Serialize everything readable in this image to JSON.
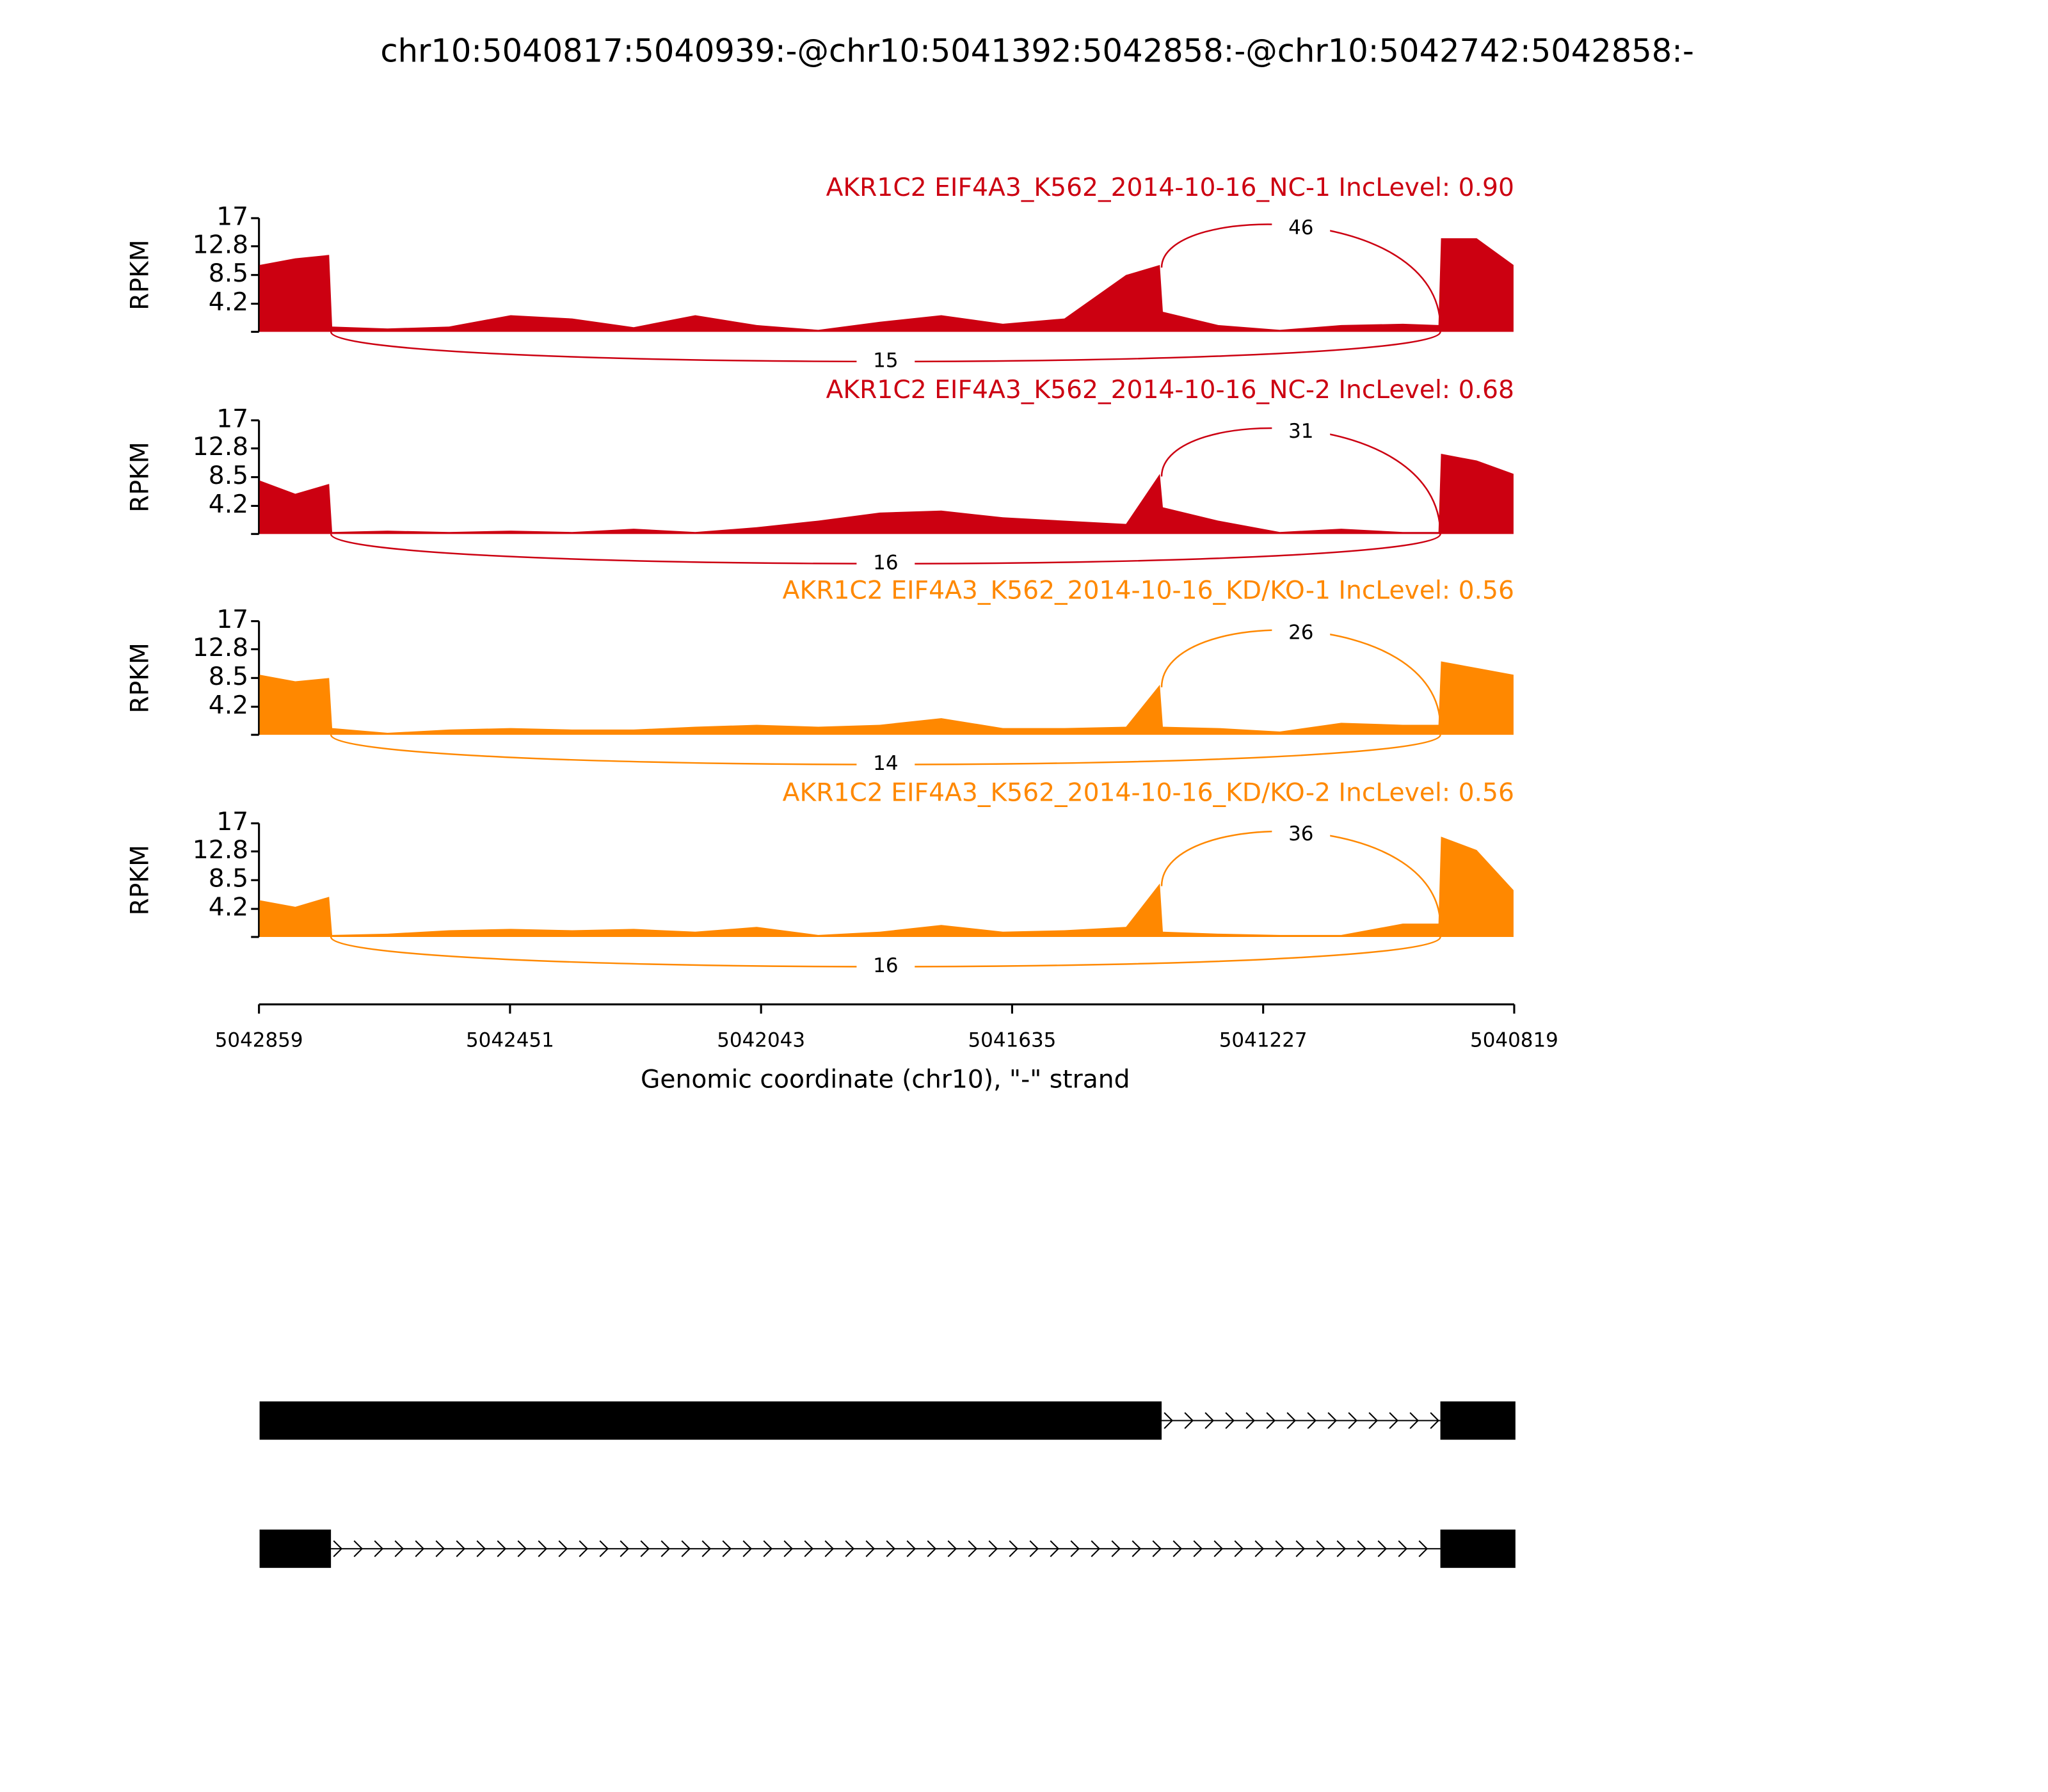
{
  "chart_data": {
    "type": "sashimi",
    "title": "chr10:5040817:5040939:-@chr10:5041392:5042858:-@chr10:5042742:5042858:-",
    "x_label": "Genomic coordinate (chr10), \"-\" strand",
    "xlim": [
      5042859,
      5040819
    ],
    "xticks": [
      5042859,
      5042451,
      5042043,
      5041635,
      5041227,
      5040819
    ],
    "x": [
      5042858,
      5042800,
      5042745,
      5042740,
      5042650,
      5042550,
      5042450,
      5042350,
      5042250,
      5042150,
      5042050,
      5041950,
      5041850,
      5041750,
      5041650,
      5041550,
      5041450,
      5041395,
      5041390,
      5041300,
      5041200,
      5041100,
      5041000,
      5040942,
      5040938,
      5040880,
      5040820
    ],
    "tracks": [
      {
        "name": "AKR1C2 EIF4A3_K562_2014-10-16_NC-1 IncLevel: 0.90",
        "color": "#cc0011",
        "y_label": "RPKM",
        "ylim": [
          0,
          17
        ],
        "yticks": [
          4.2,
          8.5,
          12.8,
          17
        ],
        "values": [
          10,
          11,
          11.5,
          0.8,
          0.5,
          0.8,
          2.5,
          2.0,
          0.7,
          2.5,
          1.0,
          0.3,
          1.5,
          2.5,
          1.2,
          2.0,
          8.5,
          10,
          3,
          1.0,
          0.3,
          1.0,
          1.2,
          1.0,
          14,
          14,
          10
        ],
        "junctions": [
          {
            "start": 5041392,
            "end": 5040939,
            "count": 46,
            "side": "top"
          },
          {
            "start": 5042742,
            "end": 5040939,
            "count": 15,
            "side": "bottom"
          }
        ]
      },
      {
        "name": "AKR1C2 EIF4A3_K562_2014-10-16_NC-2 IncLevel: 0.68",
        "color": "#cc0011",
        "y_label": "RPKM",
        "ylim": [
          0,
          17
        ],
        "yticks": [
          4.2,
          8.5,
          12.8,
          17
        ],
        "values": [
          8,
          6,
          7.5,
          0.3,
          0.5,
          0.3,
          0.5,
          0.3,
          0.8,
          0.3,
          1.0,
          2.0,
          3.2,
          3.5,
          2.5,
          2.0,
          1.5,
          9,
          4,
          2,
          0.3,
          0.8,
          0.3,
          0.3,
          12,
          11,
          9
        ],
        "junctions": [
          {
            "start": 5041392,
            "end": 5040939,
            "count": 31,
            "side": "top"
          },
          {
            "start": 5042742,
            "end": 5040939,
            "count": 16,
            "side": "bottom"
          }
        ]
      },
      {
        "name": "AKR1C2 EIF4A3_K562_2014-10-16_KD/KO-1 IncLevel: 0.56",
        "color": "#ff8800",
        "y_label": "RPKM",
        "ylim": [
          0,
          17
        ],
        "yticks": [
          4.2,
          8.5,
          12.8,
          17
        ],
        "values": [
          9,
          8,
          8.5,
          1,
          0.3,
          0.8,
          1,
          0.8,
          0.8,
          1.2,
          1.5,
          1.2,
          1.5,
          2.5,
          1.0,
          1.0,
          1.2,
          7.5,
          1.2,
          1,
          0.5,
          1.8,
          1.5,
          1.5,
          11,
          10,
          9
        ],
        "junctions": [
          {
            "start": 5041392,
            "end": 5040939,
            "count": 26,
            "side": "top"
          },
          {
            "start": 5042742,
            "end": 5040939,
            "count": 14,
            "side": "bottom"
          }
        ]
      },
      {
        "name": "AKR1C2 EIF4A3_K562_2014-10-16_KD/KO-2 IncLevel: 0.56",
        "color": "#ff8800",
        "y_label": "RPKM",
        "ylim": [
          0,
          17
        ],
        "yticks": [
          4.2,
          8.5,
          12.8,
          17
        ],
        "values": [
          5.5,
          4.5,
          6,
          0.3,
          0.5,
          1.0,
          1.2,
          1.0,
          1.2,
          0.8,
          1.5,
          0.3,
          0.8,
          1.8,
          0.8,
          1.0,
          1.5,
          8,
          0.8,
          0.5,
          0.3,
          0.3,
          2.0,
          2.0,
          15,
          13,
          7
        ],
        "junctions": [
          {
            "start": 5041392,
            "end": 5040939,
            "count": 36,
            "side": "top"
          },
          {
            "start": 5042742,
            "end": 5040939,
            "count": 16,
            "side": "bottom"
          }
        ]
      }
    ],
    "transcripts": [
      {
        "exons": [
          [
            5041392,
            5042858
          ],
          [
            5040817,
            5040939
          ]
        ]
      },
      {
        "exons": [
          [
            5042742,
            5042858
          ],
          [
            5040817,
            5040939
          ]
        ]
      }
    ]
  }
}
